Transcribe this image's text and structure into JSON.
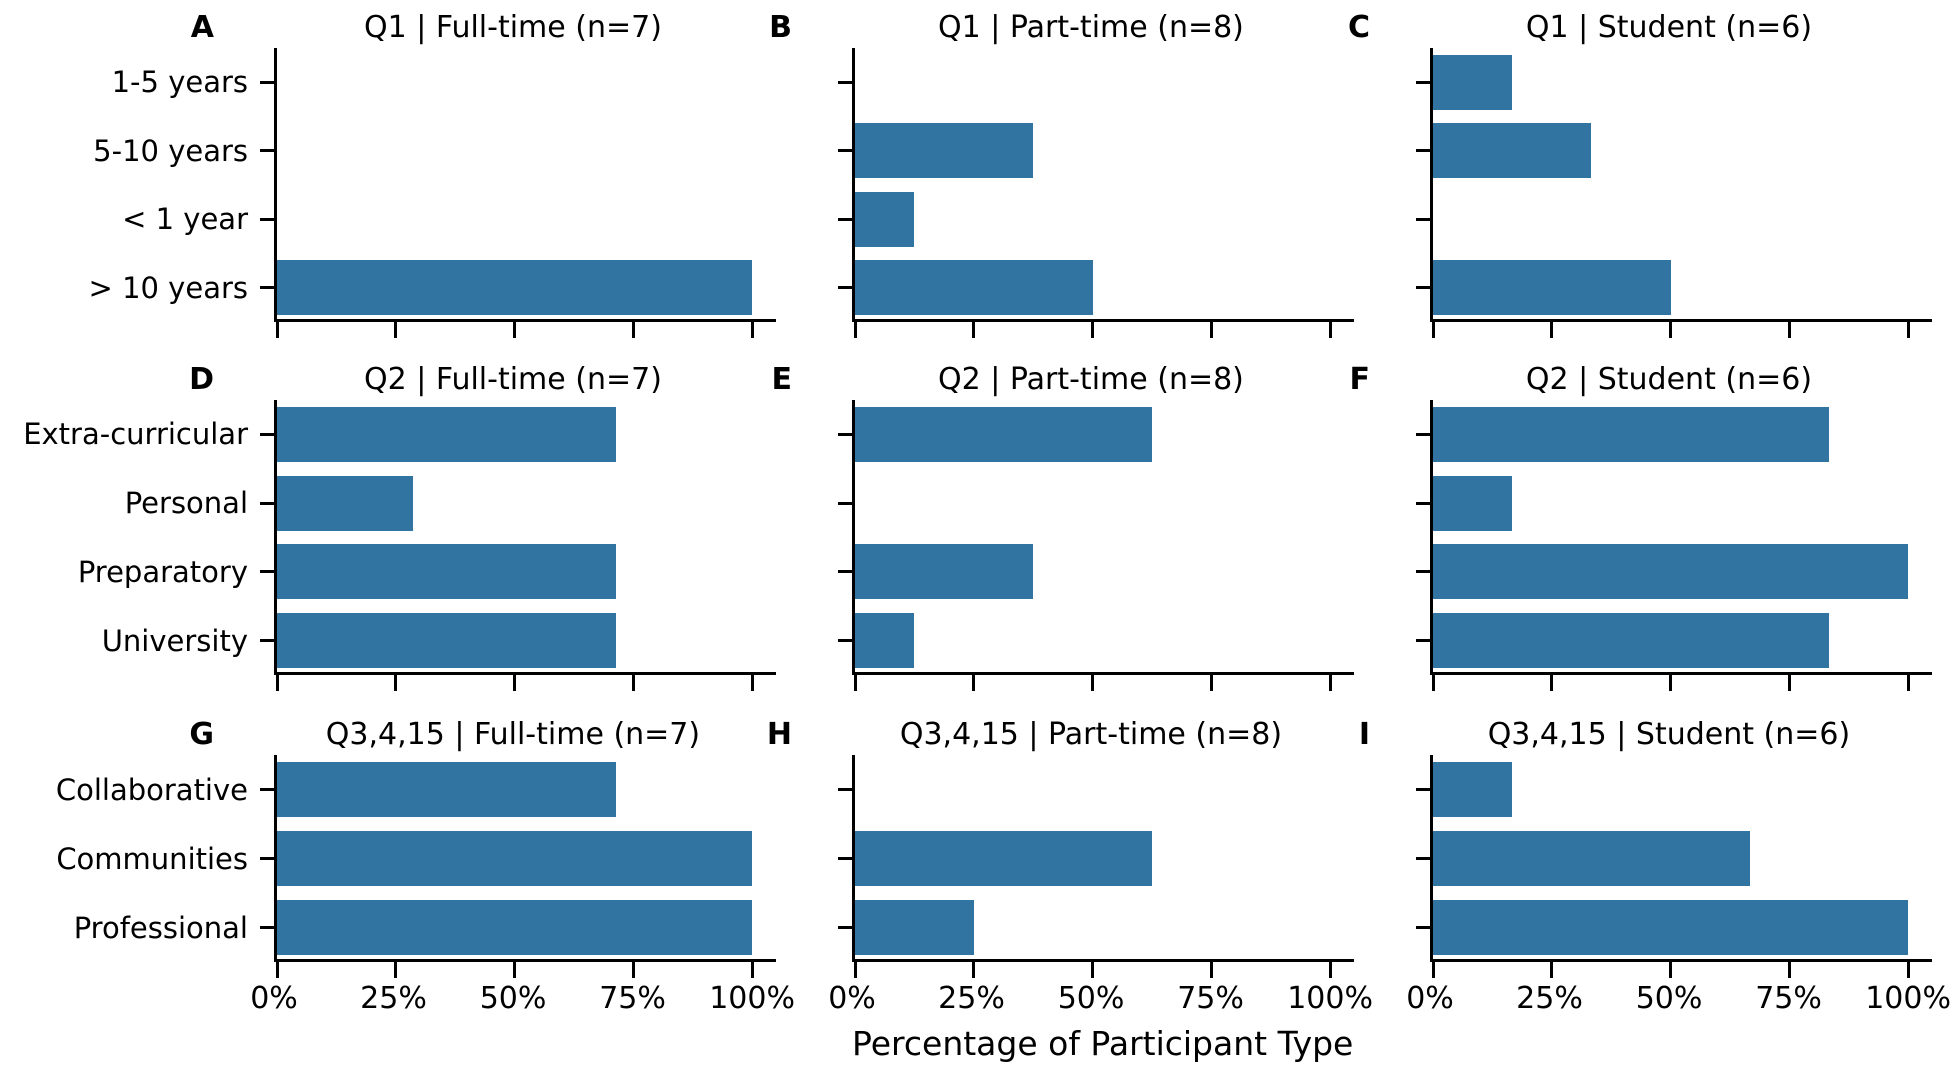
{
  "figure": {
    "background_color": "#ffffff",
    "bar_color": "#3274a1",
    "axis_color": "#000000"
  },
  "chart_data": {
    "type": "bar",
    "orientation": "horizontal",
    "grid": false,
    "legend": false,
    "xlabel": "Percentage of Participant Type",
    "xlim": [
      0,
      105
    ],
    "x_ticks": [
      0,
      25,
      50,
      75,
      100
    ],
    "x_tick_labels": [
      "0%",
      "25%",
      "50%",
      "75%",
      "100%"
    ],
    "bar_color": "#3274a1",
    "rows": [
      {
        "categories": [
          "1-5 years",
          "5-10 years",
          "< 1 year",
          "> 10 years"
        ],
        "subplots": [
          {
            "panel": "A",
            "title": "Q1 | Full-time (n=7)",
            "values": [
              0,
              0,
              0,
              100
            ]
          },
          {
            "panel": "B",
            "title": "Q1 | Part-time (n=8)",
            "values": [
              0,
              37.5,
              12.5,
              50
            ]
          },
          {
            "panel": "C",
            "title": "Q1 | Student (n=6)",
            "values": [
              16.7,
              33.3,
              0,
              50
            ]
          }
        ]
      },
      {
        "categories": [
          "Extra-curricular",
          "Personal",
          "Preparatory",
          "University"
        ],
        "subplots": [
          {
            "panel": "D",
            "title": "Q2 | Full-time (n=7)",
            "values": [
              71.4,
              28.6,
              71.4,
              71.4
            ]
          },
          {
            "panel": "E",
            "title": "Q2 | Part-time (n=8)",
            "values": [
              62.5,
              0,
              37.5,
              12.5
            ]
          },
          {
            "panel": "F",
            "title": "Q2 | Student (n=6)",
            "values": [
              83.3,
              16.7,
              100,
              83.3
            ]
          }
        ]
      },
      {
        "categories": [
          "Collaborative",
          "Communities",
          "Professional"
        ],
        "subplots": [
          {
            "panel": "G",
            "title": "Q3,4,15 | Full-time (n=7)",
            "values": [
              71.4,
              100,
              100
            ]
          },
          {
            "panel": "H",
            "title": "Q3,4,15 | Part-time (n=8)",
            "values": [
              0,
              62.5,
              25
            ]
          },
          {
            "panel": "I",
            "title": "Q3,4,15 | Student (n=6)",
            "values": [
              16.7,
              66.7,
              100
            ]
          }
        ]
      }
    ]
  }
}
